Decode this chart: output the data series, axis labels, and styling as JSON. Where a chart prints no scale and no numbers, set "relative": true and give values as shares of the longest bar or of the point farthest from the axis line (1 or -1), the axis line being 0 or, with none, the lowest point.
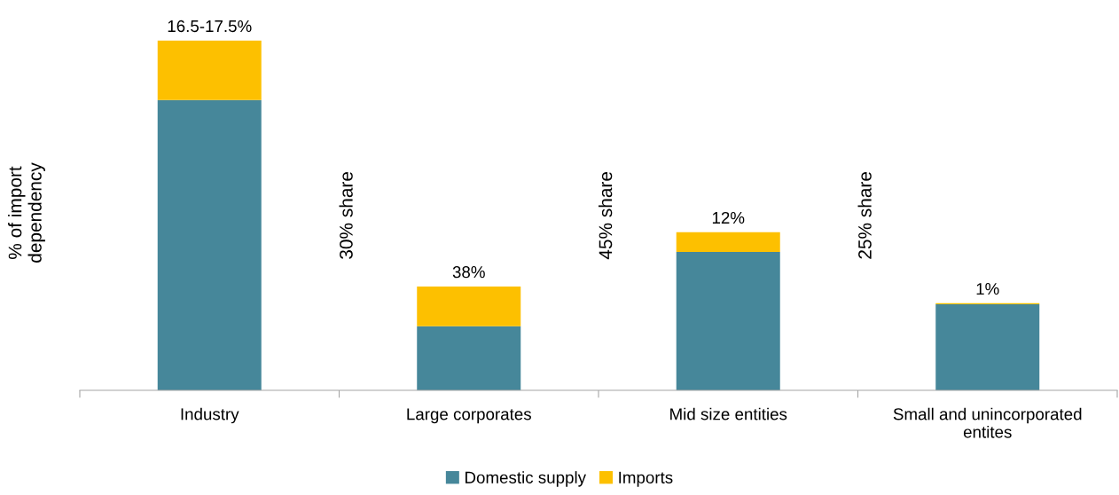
{
  "chart_data": {
    "type": "bar",
    "stacked": true,
    "relative": true,
    "ylabel": "% of import\ndependency",
    "categories": [
      "Industry",
      "Large corporates",
      "Mid size entities",
      "Small and unincorporated\nentites"
    ],
    "series": [
      {
        "name": "Domestic supply",
        "color": "#46879a",
        "values": [
          0.83,
          0.183,
          0.396,
          0.246
        ]
      },
      {
        "name": "Imports",
        "color": "#fdc000",
        "values": [
          0.17,
          0.114,
          0.056,
          0.003
        ]
      }
    ],
    "annotations": [
      "30% share",
      "45% share",
      "25% share",
      {
        "text": "16.5-17.5%",
        "x": "Industry",
        "y": 1.0
      },
      {
        "text": "38%",
        "x": "Large corporates",
        "y": 0.297
      },
      {
        "text": "12%",
        "x": "Mid size entities",
        "y": 0.452
      },
      {
        "text": "1%",
        "x": "Small and unincorporated\nentites",
        "y": 0.249
      }
    ],
    "legend": "bottom",
    "grid": false
  }
}
